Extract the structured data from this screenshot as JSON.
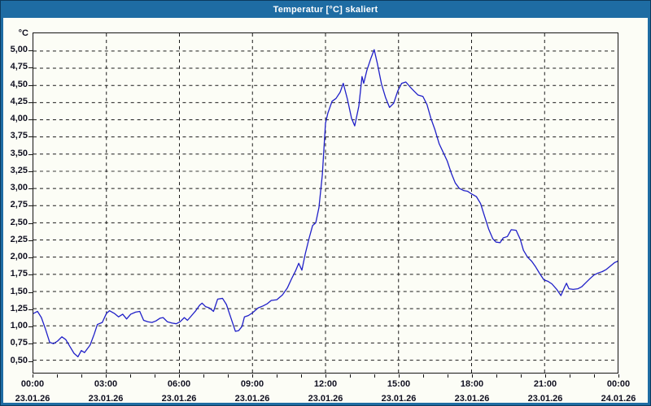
{
  "window": {
    "title": "Temperatur [°C] skaliert"
  },
  "colors": {
    "titlebar": "#1E6CA3",
    "window_border": "#0C3A5E",
    "background": "#FCFDF6",
    "grid": "#1A1A1A",
    "line": "#1F1FC8",
    "text": "#101020"
  },
  "chart_data": {
    "type": "line",
    "title": "Temperatur [°C] skaliert",
    "legend": "none",
    "grid": "dashed",
    "y_axis": {
      "unit_label": "°C",
      "min": 0.5,
      "max": 5.0,
      "step": 0.25,
      "ticks": [
        {
          "v": 5.0,
          "label": "5,00"
        },
        {
          "v": 4.75,
          "label": "4,75"
        },
        {
          "v": 4.5,
          "label": "4,50"
        },
        {
          "v": 4.25,
          "label": "4,25"
        },
        {
          "v": 4.0,
          "label": "4,00"
        },
        {
          "v": 3.75,
          "label": "3,75"
        },
        {
          "v": 3.5,
          "label": "3,50"
        },
        {
          "v": 3.25,
          "label": "3,25"
        },
        {
          "v": 3.0,
          "label": "3,00"
        },
        {
          "v": 2.75,
          "label": "2,75"
        },
        {
          "v": 2.5,
          "label": "2,50"
        },
        {
          "v": 2.25,
          "label": "2,25"
        },
        {
          "v": 2.0,
          "label": "2,00"
        },
        {
          "v": 1.75,
          "label": "1,75"
        },
        {
          "v": 1.5,
          "label": "1,50"
        },
        {
          "v": 1.25,
          "label": "1,25"
        },
        {
          "v": 1.0,
          "label": "1,00"
        },
        {
          "v": 0.75,
          "label": "0,75"
        },
        {
          "v": 0.5,
          "label": "0,50"
        }
      ]
    },
    "x_axis": {
      "min_hours": 0,
      "max_hours": 24,
      "major_step_hours": 3,
      "minor_step_hours": 1,
      "ticks": [
        {
          "hour": 0,
          "time": "00:00",
          "date": "23.01.26"
        },
        {
          "hour": 3,
          "time": "03:00",
          "date": "23.01.26"
        },
        {
          "hour": 6,
          "time": "06:00",
          "date": "23.01.26"
        },
        {
          "hour": 9,
          "time": "09:00",
          "date": "23.01.26"
        },
        {
          "hour": 12,
          "time": "12:00",
          "date": "23.01.26"
        },
        {
          "hour": 15,
          "time": "15:00",
          "date": "23.01.26"
        },
        {
          "hour": 18,
          "time": "18:00",
          "date": "23.01.26"
        },
        {
          "hour": 21,
          "time": "21:00",
          "date": "23.01.26"
        },
        {
          "hour": 24,
          "time": "00:00",
          "date": "24.01.26"
        }
      ]
    },
    "series": [
      {
        "name": "Temperatur [°C]",
        "points": [
          [
            0,
            1.18
          ],
          [
            0.17,
            1.21
          ],
          [
            0.33,
            1.12
          ],
          [
            0.5,
            0.95
          ],
          [
            0.67,
            0.76
          ],
          [
            0.83,
            0.74
          ],
          [
            1,
            0.78
          ],
          [
            1.17,
            0.84
          ],
          [
            1.33,
            0.8
          ],
          [
            1.5,
            0.7
          ],
          [
            1.67,
            0.6
          ],
          [
            1.83,
            0.55
          ],
          [
            1.97,
            0.64
          ],
          [
            2.1,
            0.61
          ],
          [
            2.33,
            0.72
          ],
          [
            2.5,
            0.88
          ],
          [
            2.63,
            1.02
          ],
          [
            2.83,
            1.05
          ],
          [
            3,
            1.18
          ],
          [
            3.13,
            1.22
          ],
          [
            3.33,
            1.18
          ],
          [
            3.5,
            1.13
          ],
          [
            3.67,
            1.17
          ],
          [
            3.83,
            1.1
          ],
          [
            4,
            1.17
          ],
          [
            4.2,
            1.2
          ],
          [
            4.37,
            1.21
          ],
          [
            4.53,
            1.08
          ],
          [
            4.7,
            1.06
          ],
          [
            4.87,
            1.05
          ],
          [
            5.03,
            1.07
          ],
          [
            5.2,
            1.11
          ],
          [
            5.33,
            1.12
          ],
          [
            5.5,
            1.06
          ],
          [
            5.7,
            1.04
          ],
          [
            5.87,
            1.03
          ],
          [
            6.03,
            1.06
          ],
          [
            6.2,
            1.12
          ],
          [
            6.33,
            1.08
          ],
          [
            6.5,
            1.15
          ],
          [
            6.67,
            1.22
          ],
          [
            6.83,
            1.3
          ],
          [
            6.93,
            1.33
          ],
          [
            7.07,
            1.28
          ],
          [
            7.23,
            1.26
          ],
          [
            7.4,
            1.21
          ],
          [
            7.57,
            1.39
          ],
          [
            7.77,
            1.4
          ],
          [
            7.93,
            1.31
          ],
          [
            8.1,
            1.13
          ],
          [
            8.3,
            0.92
          ],
          [
            8.43,
            0.93
          ],
          [
            8.57,
            0.99
          ],
          [
            8.67,
            1.13
          ],
          [
            8.83,
            1.15
          ],
          [
            9,
            1.19
          ],
          [
            9.23,
            1.26
          ],
          [
            9.43,
            1.29
          ],
          [
            9.6,
            1.32
          ],
          [
            9.77,
            1.37
          ],
          [
            10,
            1.38
          ],
          [
            10.23,
            1.45
          ],
          [
            10.43,
            1.55
          ],
          [
            10.6,
            1.68
          ],
          [
            10.77,
            1.8
          ],
          [
            10.9,
            1.91
          ],
          [
            11.03,
            1.81
          ],
          [
            11.17,
            2.05
          ],
          [
            11.33,
            2.28
          ],
          [
            11.47,
            2.46
          ],
          [
            11.6,
            2.5
          ],
          [
            11.73,
            2.72
          ],
          [
            11.87,
            3.2
          ],
          [
            12,
            3.95
          ],
          [
            12.1,
            4.1
          ],
          [
            12.27,
            4.27
          ],
          [
            12.43,
            4.31
          ],
          [
            12.6,
            4.4
          ],
          [
            12.73,
            4.53
          ],
          [
            12.9,
            4.3
          ],
          [
            13.07,
            4.02
          ],
          [
            13.2,
            3.91
          ],
          [
            13.37,
            4.2
          ],
          [
            13.5,
            4.63
          ],
          [
            13.57,
            4.53
          ],
          [
            13.7,
            4.72
          ],
          [
            13.87,
            4.9
          ],
          [
            14,
            5.02
          ],
          [
            14.13,
            4.82
          ],
          [
            14.3,
            4.52
          ],
          [
            14.47,
            4.32
          ],
          [
            14.63,
            4.18
          ],
          [
            14.8,
            4.24
          ],
          [
            14.97,
            4.42
          ],
          [
            15.13,
            4.53
          ],
          [
            15.3,
            4.55
          ],
          [
            15.47,
            4.48
          ],
          [
            15.63,
            4.42
          ],
          [
            15.8,
            4.36
          ],
          [
            16,
            4.34
          ],
          [
            16.17,
            4.22
          ],
          [
            16.33,
            4.02
          ],
          [
            16.5,
            3.85
          ],
          [
            16.67,
            3.65
          ],
          [
            16.83,
            3.53
          ],
          [
            17,
            3.4
          ],
          [
            17.17,
            3.22
          ],
          [
            17.33,
            3.08
          ],
          [
            17.5,
            3
          ],
          [
            17.67,
            2.97
          ],
          [
            17.83,
            2.96
          ],
          [
            18,
            2.92
          ],
          [
            18.2,
            2.88
          ],
          [
            18.37,
            2.78
          ],
          [
            18.53,
            2.6
          ],
          [
            18.7,
            2.41
          ],
          [
            18.87,
            2.27
          ],
          [
            19,
            2.22
          ],
          [
            19.17,
            2.21
          ],
          [
            19.3,
            2.28
          ],
          [
            19.47,
            2.3
          ],
          [
            19.63,
            2.4
          ],
          [
            19.83,
            2.39
          ],
          [
            20,
            2.26
          ],
          [
            20.13,
            2.1
          ],
          [
            20.3,
            2
          ],
          [
            20.47,
            1.94
          ],
          [
            20.63,
            1.86
          ],
          [
            20.8,
            1.76
          ],
          [
            20.97,
            1.67
          ],
          [
            21.13,
            1.65
          ],
          [
            21.3,
            1.61
          ],
          [
            21.5,
            1.53
          ],
          [
            21.67,
            1.44
          ],
          [
            21.83,
            1.57
          ],
          [
            21.9,
            1.62
          ],
          [
            22,
            1.54
          ],
          [
            22.17,
            1.53
          ],
          [
            22.37,
            1.54
          ],
          [
            22.53,
            1.57
          ],
          [
            22.7,
            1.63
          ],
          [
            22.87,
            1.69
          ],
          [
            23.03,
            1.74
          ],
          [
            23.2,
            1.77
          ],
          [
            23.37,
            1.79
          ],
          [
            23.53,
            1.82
          ],
          [
            23.7,
            1.87
          ],
          [
            23.87,
            1.92
          ],
          [
            24,
            1.94
          ]
        ]
      }
    ]
  }
}
